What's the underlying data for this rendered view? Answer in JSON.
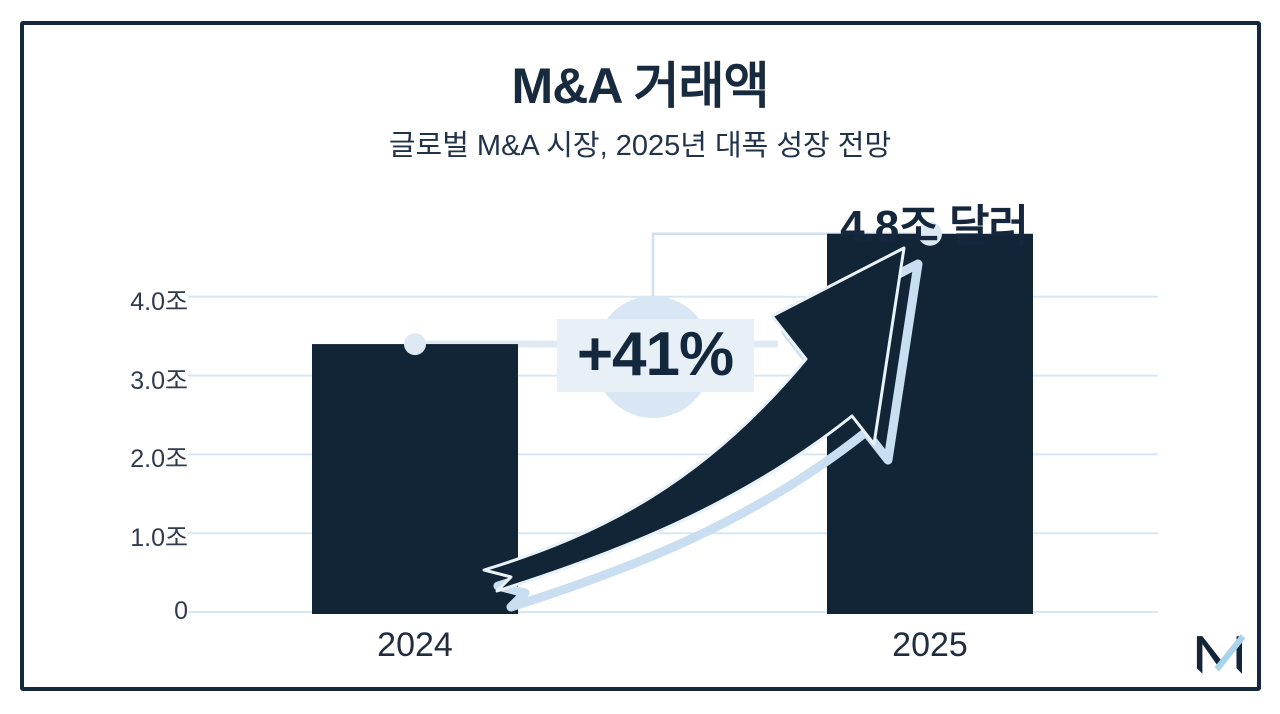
{
  "page": {
    "title": "M&A 거래액",
    "subtitle": "글로벌 M&A 시장, 2025년 대폭 성장 전망"
  },
  "annotation": {
    "growth_label": "+41%",
    "value_label": "4.8조 달러"
  },
  "logo": {
    "icon": "m-checkmark-logo"
  },
  "colors": {
    "navy": "#132638",
    "bar": "#112537",
    "arrow_fill": "#112537",
    "arrow_outline": "#eaf2f9",
    "arrow_underlay": "#c9def1",
    "gridline": "#d9e7f2",
    "connector_thick": "#e0eaf3",
    "connector_thin": "#cfe1f0",
    "dot_2024": "#dfe9f3",
    "dot_2025": "#dce9f4",
    "badge_circle": "#d9e6f3",
    "badge_band": "#e7eff7",
    "logo_check": "#a9d2ec"
  },
  "chart_data": {
    "type": "bar",
    "title": "M&A 거래액",
    "subtitle": "글로벌 M&A 시장, 2025년 대폭 성장 전망",
    "categories": [
      "2024",
      "2025"
    ],
    "values": [
      3.4,
      4.8
    ],
    "value_labels": [
      "",
      "4.8조 달러"
    ],
    "growth_annotation": "+41%",
    "xlabel": "",
    "ylabel": "",
    "y_tick_values": [
      0,
      1,
      2,
      3,
      4
    ],
    "y_tick_labels": [
      "0",
      "1.0조",
      "2.0조",
      "3.0조",
      "4.0조"
    ],
    "ylim": [
      0,
      5.0
    ],
    "grid": true,
    "legend": "none"
  }
}
